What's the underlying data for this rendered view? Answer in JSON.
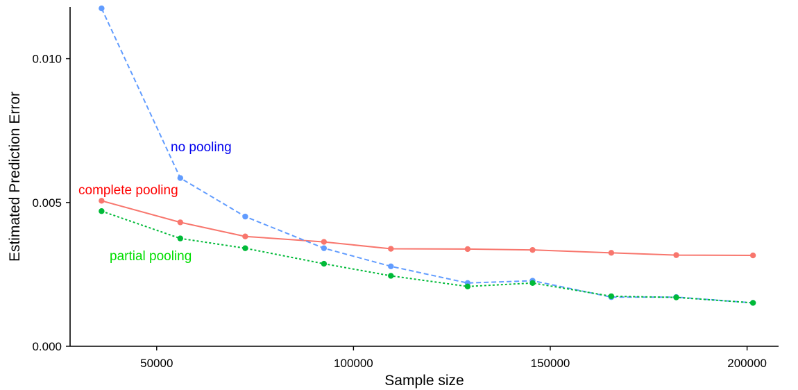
{
  "chart_data": {
    "type": "line",
    "title": "",
    "xlabel": "Sample size",
    "ylabel": "Estimated Prediction Error",
    "xlim": [
      28000,
      208000
    ],
    "ylim": [
      0,
      0.0118
    ],
    "x_ticks": [
      50000,
      100000,
      150000,
      200000
    ],
    "x_tick_labels": [
      "50000",
      "100000",
      "150000",
      "200000"
    ],
    "y_ticks": [
      0,
      0.005,
      0.01
    ],
    "y_tick_labels": [
      "0.000",
      "0.005",
      "0.010"
    ],
    "grid": false,
    "legend": "none (direct labels on series)",
    "series": [
      {
        "name": "complete pooling",
        "color": "#F8766D",
        "label_color": "#FF0000",
        "line_style": "solid",
        "x": [
          36000,
          56000,
          72500,
          92500,
          109500,
          129000,
          145500,
          165500,
          182000,
          201500
        ],
        "y": [
          0.00506,
          0.00431,
          0.00382,
          0.00363,
          0.00339,
          0.00338,
          0.00335,
          0.00325,
          0.00317,
          0.00316
        ]
      },
      {
        "name": "no pooling",
        "color": "#619CFF",
        "label_color": "#0000EE",
        "line_style": "dashed",
        "x": [
          36000,
          56000,
          72500,
          92500,
          109500,
          129000,
          145500,
          165500,
          182000,
          201500
        ],
        "y": [
          0.01175,
          0.00585,
          0.00451,
          0.00341,
          0.00278,
          0.0022,
          0.00228,
          0.00171,
          0.00171,
          0.00151
        ]
      },
      {
        "name": "partial pooling",
        "color": "#00BA38",
        "label_color": "#00DD00",
        "line_style": "dotted",
        "x": [
          36000,
          56000,
          72500,
          92500,
          109500,
          129000,
          145500,
          165500,
          182000,
          201500
        ],
        "y": [
          0.0047,
          0.00375,
          0.00341,
          0.00287,
          0.00245,
          0.00208,
          0.0022,
          0.00174,
          0.0017,
          0.00151
        ]
      }
    ]
  }
}
